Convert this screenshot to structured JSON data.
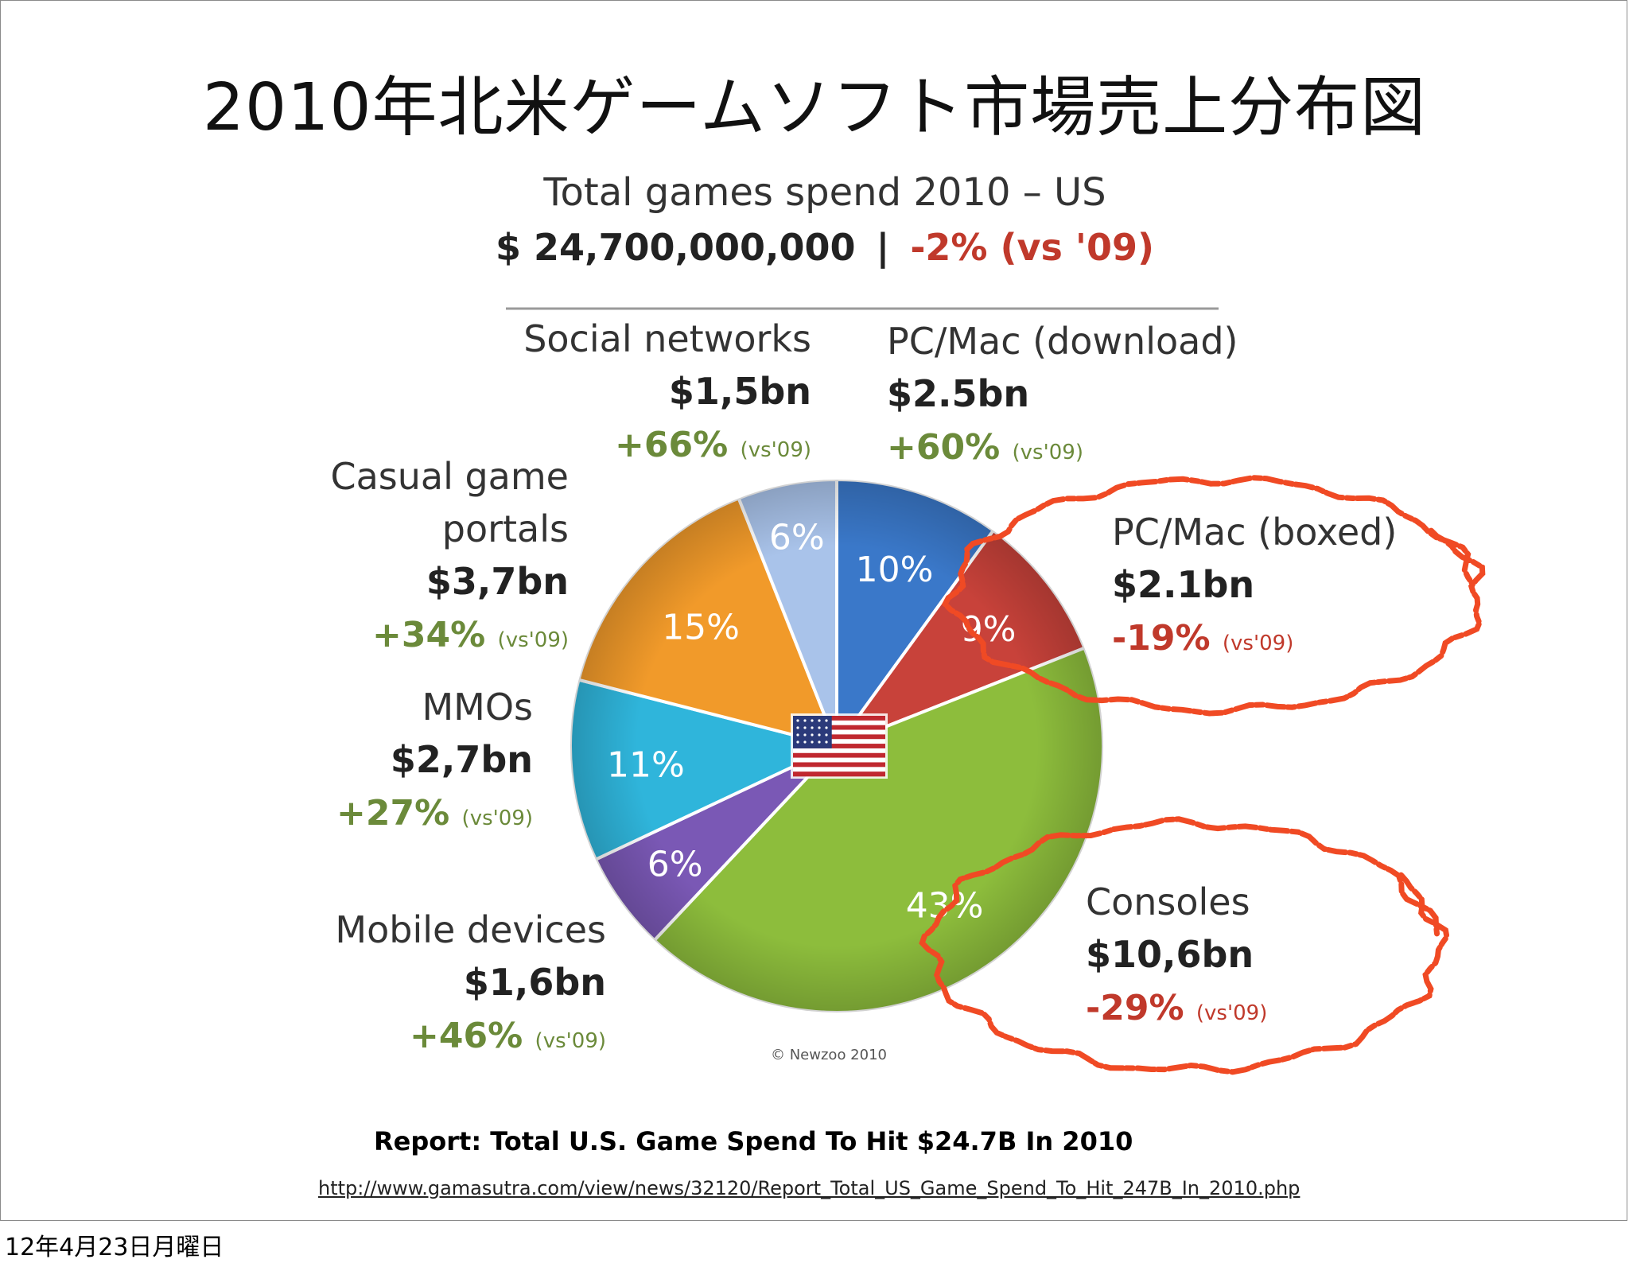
{
  "slide": {
    "title": "2010年北米ゲームソフト市場売上分布図",
    "report_caption": "Report: Total U.S. Game Spend To Hit $24.7B In 2010",
    "source_url": "http://www.gamasutra.com/view/news/32120/Report_Total_US_Game_Spend_To_Hit_247B_In_2010.php",
    "footer_date": "12年4月23日月曜日"
  },
  "chart_data": {
    "type": "pie",
    "title": "Total games spend 2010 – US",
    "total_amount": "$ 24,700,000,000",
    "total_separator": "|",
    "total_change": "-2% (vs '09)",
    "credit": "© Newzoo 2010",
    "flag": "us-flag-icon",
    "colors": {
      "positive_change": "#6b8a3a",
      "negative_change": "#c0392b",
      "highlight_circle": "#f04a24",
      "label_text": "#333333"
    },
    "slices": [
      {
        "name": "PC/Mac (download)",
        "percent": 10,
        "percent_label": "10%",
        "amount": "$2.5bn",
        "change": "+60%",
        "change_note": "(vs'09)",
        "color": "#3a78c9",
        "trend": "positive",
        "highlighted": false
      },
      {
        "name": "PC/Mac (boxed)",
        "percent": 9,
        "percent_label": "9%",
        "amount": "$2.1bn",
        "change": "-19%",
        "change_note": "(vs'09)",
        "color": "#c8423a",
        "trend": "negative",
        "highlighted": true
      },
      {
        "name": "Consoles",
        "percent": 43,
        "percent_label": "43%",
        "amount": "$10,6bn",
        "change": "-29%",
        "change_note": "(vs'09)",
        "color": "#8dbd3c",
        "trend": "negative",
        "highlighted": true
      },
      {
        "name": "Mobile devices",
        "percent": 6,
        "percent_label": "6%",
        "amount": "$1,6bn",
        "change": "+46%",
        "change_note": "(vs'09)",
        "color": "#7a58b5",
        "trend": "positive",
        "highlighted": false
      },
      {
        "name": "MMOs",
        "percent": 11,
        "percent_label": "11%",
        "amount": "$2,7bn",
        "change": "+27%",
        "change_note": "(vs'09)",
        "color": "#2fb5db",
        "trend": "positive",
        "highlighted": false
      },
      {
        "name": "Casual game portals",
        "name_lines": [
          "Casual game",
          "portals"
        ],
        "percent": 15,
        "percent_label": "15%",
        "amount": "$3,7bn",
        "change": "+34%",
        "change_note": "(vs'09)",
        "color": "#f19a2a",
        "trend": "positive",
        "highlighted": false
      },
      {
        "name": "Social networks",
        "percent": 6,
        "percent_label": "6%",
        "amount": "$1,5bn",
        "change": "+66%",
        "change_note": "(vs'09)",
        "color": "#a9c3ea",
        "trend": "positive",
        "highlighted": false
      }
    ]
  }
}
